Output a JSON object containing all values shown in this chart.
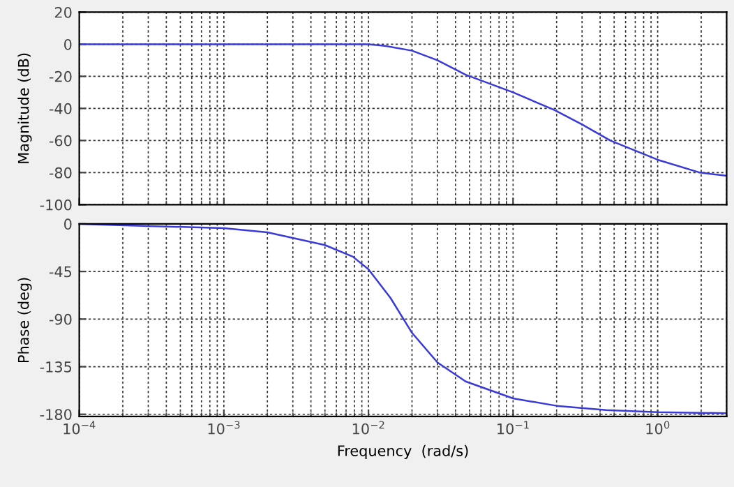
{
  "chart_data": [
    {
      "type": "line",
      "ylabel": "Magnitude (dB)",
      "log": "x",
      "grid": true,
      "tick_labels": "y",
      "xlim": [
        0.0001,
        3
      ],
      "ylim": [
        -100,
        20
      ],
      "yticks": [
        20,
        0,
        -20,
        -40,
        -60,
        -80,
        -100
      ],
      "series": [
        {
          "color": "#3a3ad8",
          "x": [
            0.0001,
            0.001,
            0.005,
            0.01,
            0.013,
            0.02,
            0.03,
            0.047,
            0.1,
            0.193,
            0.3,
            0.47,
            1,
            1.96,
            3
          ],
          "values": [
            0,
            0,
            0,
            0,
            -1,
            -4,
            -10,
            -19,
            -30,
            -41,
            -50,
            -60,
            -72,
            -80,
            -82
          ]
        }
      ]
    },
    {
      "type": "line",
      "ylabel": "Phase (deg)",
      "xlabel": "Frequency  (rad/s)",
      "log": "x",
      "grid": true,
      "xlim": [
        0.0001,
        3
      ],
      "ylim": [
        -182,
        0
      ],
      "yticks": [
        0,
        -45,
        -90,
        -135,
        -180
      ],
      "xticks": [
        {
          "value": 0.0001,
          "label": "10$^{−4}$"
        },
        {
          "value": 0.001,
          "label": "10$^{−3}$"
        },
        {
          "value": 0.01,
          "label": "10$^{−2}$"
        },
        {
          "value": 0.1,
          "label": "10$^{−1}$"
        },
        {
          "value": 1,
          "label": "10$^{0}$"
        }
      ],
      "series": [
        {
          "color": "#3a3ad8",
          "x": [
            0.0001,
            0.0003,
            0.001,
            0.002,
            0.005,
            0.0078,
            0.01,
            0.0142,
            0.02,
            0.03,
            0.047,
            0.1,
            0.2,
            0.44,
            1,
            3
          ],
          "values": [
            0,
            -2,
            -4,
            -8,
            -20,
            -31,
            -43,
            -70,
            -103,
            -131,
            -149,
            -165,
            -172,
            -176,
            -178,
            -179
          ]
        }
      ]
    }
  ]
}
